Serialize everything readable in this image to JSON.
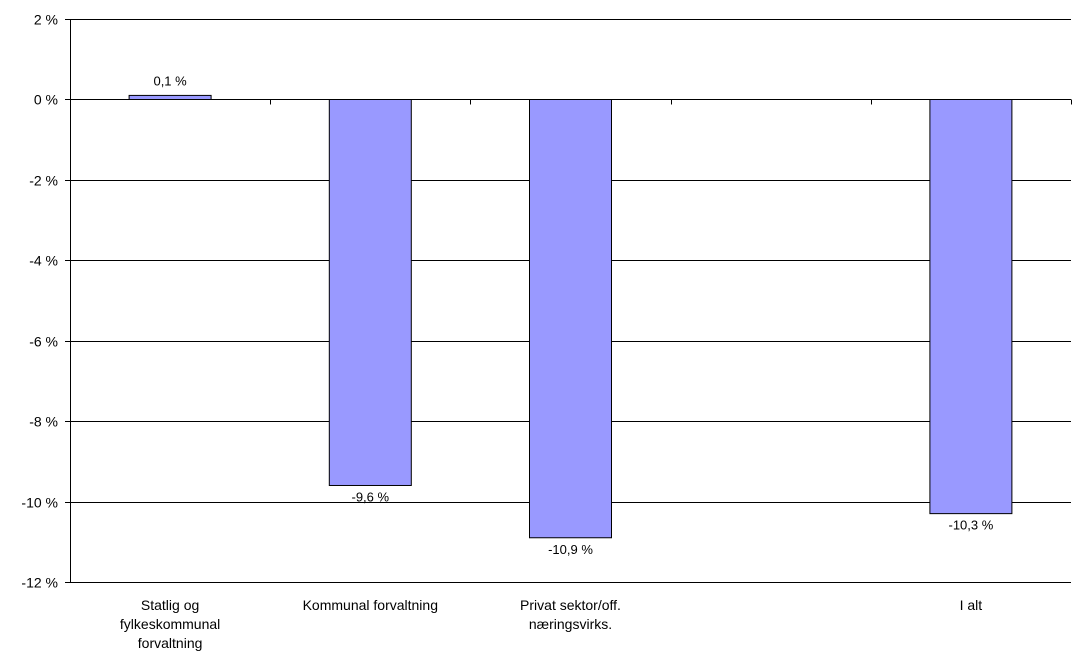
{
  "chart_data": {
    "type": "bar",
    "categories": [
      [
        "Statlig og",
        "fylkeskommunal",
        "forvaltning"
      ],
      [
        "Kommunal forvaltning"
      ],
      [
        "Privat sektor/off.",
        "næringsvirks."
      ],
      [
        ""
      ],
      [
        "I alt"
      ]
    ],
    "values": [
      0.1,
      -9.6,
      -10.9,
      null,
      -10.3
    ],
    "value_labels": [
      "0,1 %",
      "-9,6 %",
      "-10,9 %",
      "",
      "-10,3 %"
    ],
    "ylim": [
      -12,
      2
    ],
    "yticks": [
      2,
      0,
      -2,
      -4,
      -6,
      -8,
      -10,
      -12
    ],
    "ytick_labels": [
      "2 %",
      "0 %",
      "-2 %",
      "-4 %",
      "-6 %",
      "-8 %",
      "-10 %",
      "-12 %"
    ],
    "grid": true,
    "legend": "none",
    "title": "",
    "xlabel": "",
    "ylabel": "",
    "colors": {
      "bar_fill": "#9999ff",
      "bar_stroke": "#000000",
      "grid": "#000000",
      "axis": "#000000"
    }
  }
}
